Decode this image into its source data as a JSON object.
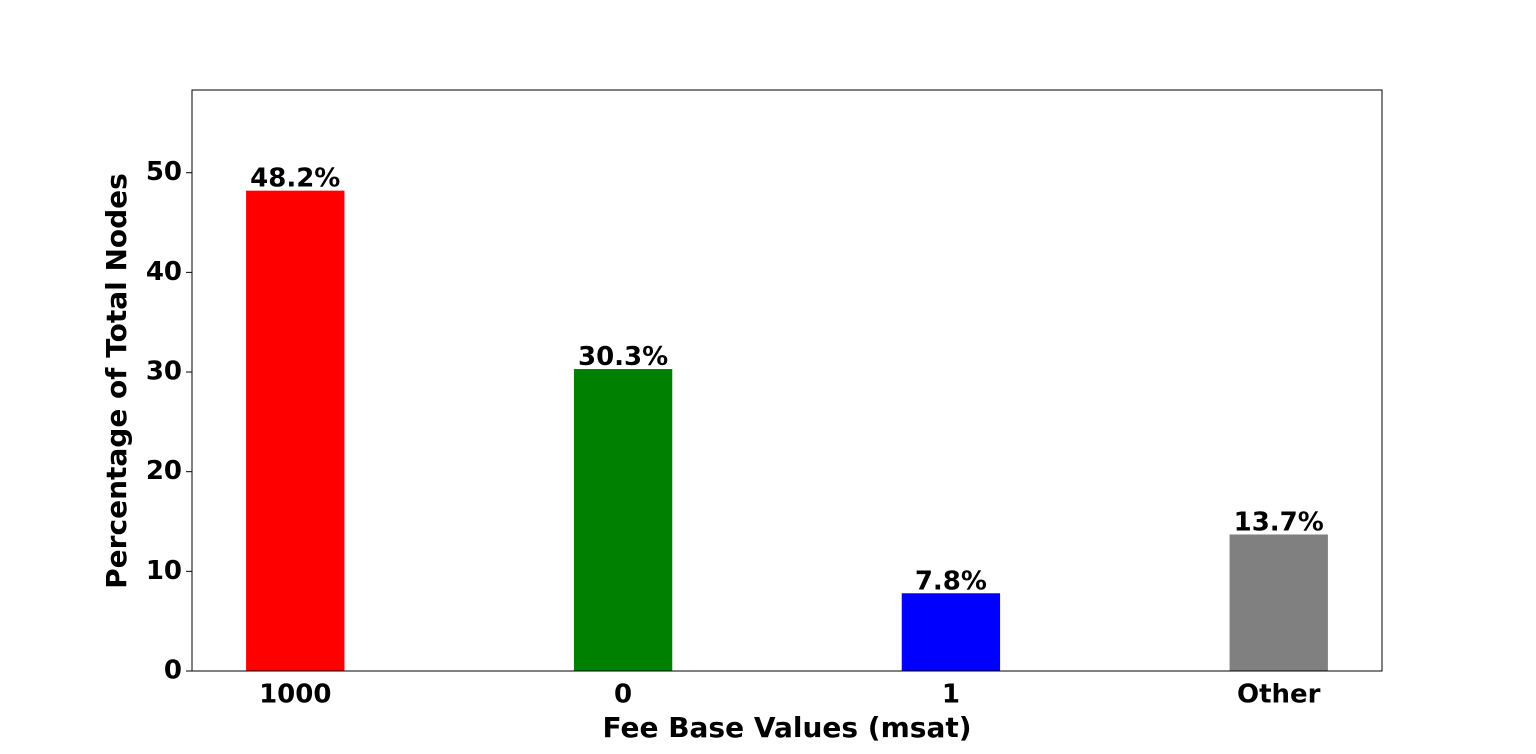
{
  "chart_data": {
    "type": "bar",
    "xlabel": "Fee Base Values (msat)",
    "ylabel": "Percentage of Total Nodes",
    "categories": [
      "1000",
      "0",
      "1",
      "Other"
    ],
    "values": [
      48.2,
      30.3,
      7.8,
      13.7
    ],
    "value_labels": [
      "48.2%",
      "30.3%",
      "7.8%",
      "13.7%"
    ],
    "colors": [
      "#ff0000",
      "#008000",
      "#0000ff",
      "#808080"
    ],
    "ylim": [
      0,
      58.3
    ],
    "yticks": [
      0,
      10,
      20,
      30,
      40,
      50
    ],
    "grid": false
  }
}
